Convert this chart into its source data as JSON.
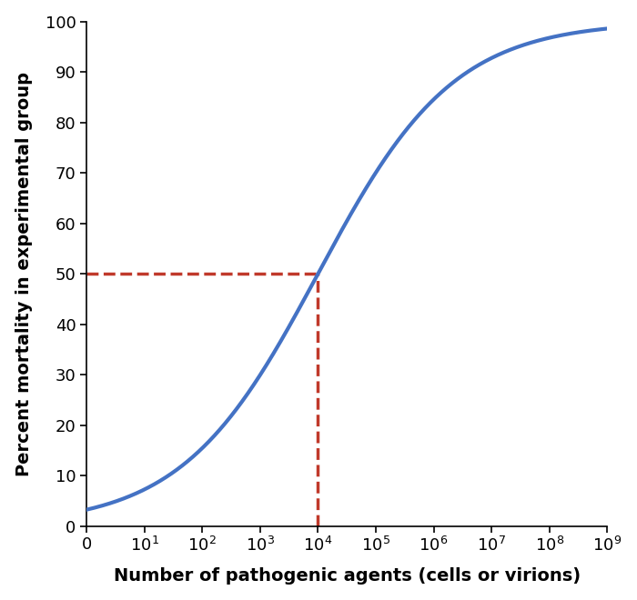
{
  "title": "",
  "xlabel": "Number of pathogenic agents (cells or virions)",
  "ylabel": "Percent mortality in experimental group",
  "ylim": [
    0,
    100
  ],
  "yticks": [
    0,
    10,
    20,
    30,
    40,
    50,
    60,
    70,
    80,
    90,
    100
  ],
  "xtick_positions": [
    0,
    1,
    2,
    3,
    4,
    5,
    6,
    7,
    8,
    9
  ],
  "sigmoid_midpoint_log": 4.0,
  "sigmoid_steepness": 0.85,
  "line_color": "#4472c4",
  "line_width": 3.0,
  "dashed_color": "#c0392b",
  "dashed_linewidth": 2.5,
  "ld50_log": 4,
  "ld50_y": 50,
  "background_color": "#ffffff",
  "xlabel_fontsize": 14,
  "ylabel_fontsize": 14,
  "tick_fontsize": 13,
  "xlabel_fontweight": "bold",
  "ylabel_fontweight": "bold",
  "spine_linewidth": 1.2
}
